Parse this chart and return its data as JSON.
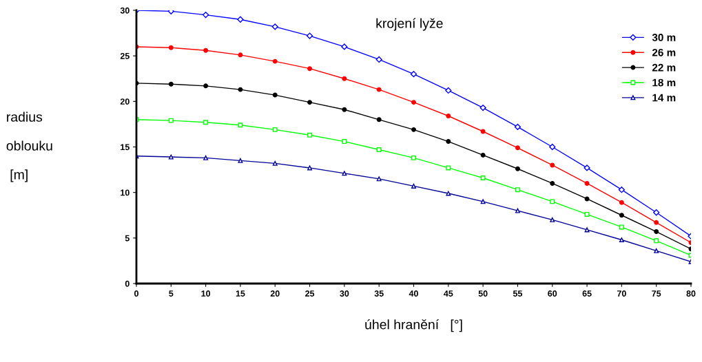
{
  "chart_data": {
    "type": "line",
    "xlabel": "úhel hranění   [°]",
    "ylabel": "radius\n\noblouku\n\n [m]",
    "legend_title": "krojení lyže",
    "legend": "top right",
    "grid": false,
    "line_style": "solid",
    "x": [
      0,
      5,
      10,
      15,
      20,
      25,
      30,
      35,
      40,
      45,
      50,
      55,
      60,
      65,
      70,
      75,
      80
    ],
    "xlim": [
      0,
      80
    ],
    "xticks": [
      0,
      5,
      10,
      15,
      20,
      25,
      30,
      35,
      40,
      45,
      50,
      55,
      60,
      65,
      70,
      75,
      80
    ],
    "ylim": [
      0,
      30
    ],
    "yticks": [
      0,
      5,
      10,
      15,
      20,
      25,
      30
    ],
    "series": [
      {
        "name": "30 m",
        "color": "#0000ff",
        "marker": "diamond",
        "values": [
          30,
          29.9,
          29.5,
          29.0,
          28.2,
          27.2,
          26.0,
          24.6,
          23.0,
          21.2,
          19.3,
          17.2,
          15.0,
          12.7,
          10.3,
          7.8,
          5.2
        ]
      },
      {
        "name": "26 m",
        "color": "#ff0000",
        "marker": "circle",
        "values": [
          26,
          25.9,
          25.6,
          25.1,
          24.4,
          23.6,
          22.5,
          21.3,
          19.9,
          18.4,
          16.7,
          14.9,
          13.0,
          11.0,
          8.9,
          6.7,
          4.5
        ]
      },
      {
        "name": "22 m",
        "color": "#000000",
        "marker": "circle",
        "values": [
          22,
          21.9,
          21.7,
          21.3,
          20.7,
          19.9,
          19.1,
          18.0,
          16.9,
          15.6,
          14.1,
          12.6,
          11.0,
          9.3,
          7.5,
          5.7,
          3.8
        ]
      },
      {
        "name": "18 m",
        "color": "#00ff00",
        "marker": "square",
        "values": [
          18,
          17.9,
          17.7,
          17.4,
          16.9,
          16.3,
          15.6,
          14.7,
          13.8,
          12.7,
          11.6,
          10.3,
          9.0,
          7.6,
          6.2,
          4.7,
          3.1
        ]
      },
      {
        "name": "14 m",
        "color": "#000099",
        "marker": "triangle",
        "values": [
          14,
          13.9,
          13.8,
          13.5,
          13.2,
          12.7,
          12.1,
          11.5,
          10.7,
          9.9,
          9.0,
          8.0,
          7.0,
          5.9,
          4.8,
          3.6,
          2.4
        ]
      }
    ]
  }
}
